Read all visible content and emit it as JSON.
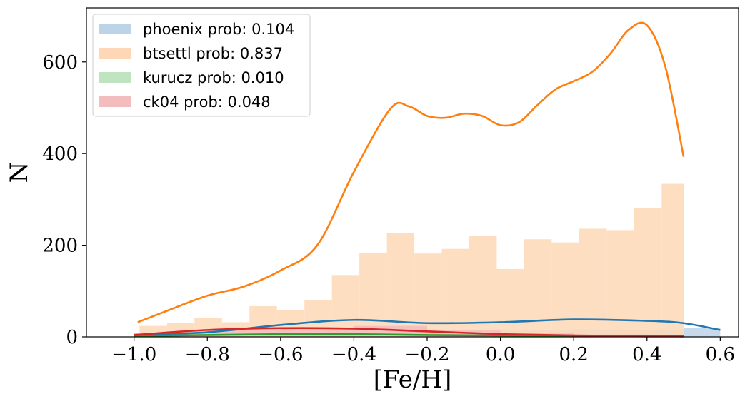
{
  "chart_data": {
    "type": "bar",
    "xlabel": "[Fe/H]",
    "ylabel": "N",
    "xlim": [
      -1.13,
      0.65
    ],
    "ylim": [
      0,
      718
    ],
    "x_ticks": [
      -1.0,
      -0.8,
      -0.6,
      -0.4,
      -0.2,
      0.0,
      0.2,
      0.4,
      0.6
    ],
    "x_tick_labels": [
      "−1.0",
      "−0.8",
      "−0.6",
      "−0.4",
      "−0.2",
      "0.0",
      "0.2",
      "0.4",
      "0.6"
    ],
    "y_ticks": [
      0,
      200,
      400,
      600
    ],
    "y_tick_labels": [
      "0",
      "200",
      "400",
      "600"
    ],
    "legend_position": "top-left",
    "grid": false,
    "series": [
      {
        "name": "phoenix prob: 0.104",
        "color": "#1f77b4",
        "hist_color": "#bcd3e8",
        "bin_edges": [
          -1.0,
          -0.85,
          -0.7,
          -0.55,
          -0.4,
          -0.25,
          -0.1,
          0.05,
          0.2,
          0.35,
          0.5,
          0.6
        ],
        "values": [
          8,
          10,
          12,
          14,
          16,
          15,
          14,
          15,
          16,
          14,
          20
        ],
        "kde_x": [
          -1.0,
          -0.8,
          -0.6,
          -0.4,
          -0.2,
          0.0,
          0.2,
          0.4,
          0.5,
          0.6
        ],
        "kde_y": [
          4,
          10,
          26,
          37,
          30,
          32,
          38,
          35,
          30,
          15
        ]
      },
      {
        "name": "btsettl prob: 0.837",
        "color": "#ff7f0e",
        "hist_color": "#fed8b6",
        "bin_edges": [
          -0.985,
          -0.91,
          -0.835,
          -0.76,
          -0.685,
          -0.61,
          -0.535,
          -0.46,
          -0.385,
          -0.31,
          -0.235,
          -0.16,
          -0.085,
          -0.01,
          0.065,
          0.14,
          0.215,
          0.29,
          0.365,
          0.44,
          0.5
        ],
        "values": [
          24,
          30,
          42,
          32,
          67,
          58,
          81,
          135,
          183,
          227,
          182,
          192,
          220,
          148,
          213,
          206,
          236,
          233,
          281,
          334
        ],
        "kde_x": [
          -0.99,
          -0.9,
          -0.8,
          -0.7,
          -0.6,
          -0.5,
          -0.4,
          -0.3,
          -0.25,
          -0.2,
          -0.15,
          -0.1,
          -0.05,
          0.0,
          0.05,
          0.1,
          0.15,
          0.2,
          0.25,
          0.3,
          0.35,
          0.4,
          0.45,
          0.5
        ],
        "kde_y": [
          32,
          60,
          90,
          110,
          145,
          200,
          360,
          498,
          503,
          482,
          478,
          487,
          482,
          462,
          468,
          505,
          540,
          558,
          578,
          618,
          670,
          680,
          590,
          393
        ]
      },
      {
        "name": "kurucz prob: 0.010",
        "color": "#2ca02c",
        "hist_color": "#c0e3c0",
        "bin_edges": [
          -1.0,
          -0.8,
          -0.6,
          -0.4,
          -0.2,
          0.0,
          0.2,
          0.4,
          0.5
        ],
        "values": [
          3,
          5,
          6,
          6,
          4,
          3,
          2,
          2
        ],
        "kde_x": [
          -1.0,
          -0.8,
          -0.6,
          -0.4,
          -0.2,
          0.0,
          0.2,
          0.4,
          0.5
        ],
        "kde_y": [
          2,
          4,
          6,
          6,
          4,
          3,
          2,
          1,
          1
        ]
      },
      {
        "name": "ck04 prob: 0.048",
        "color": "#d62728",
        "hist_color": "#f3bcbd",
        "bin_edges": [
          -1.0,
          -0.8,
          -0.6,
          -0.4,
          -0.2,
          0.0,
          0.2,
          0.4,
          0.5
        ],
        "values": [
          8,
          14,
          18,
          24,
          14,
          8,
          5,
          3
        ],
        "kde_x": [
          -1.0,
          -0.8,
          -0.6,
          -0.4,
          -0.2,
          0.0,
          0.2,
          0.4,
          0.5
        ],
        "kde_y": [
          4,
          15,
          19,
          18,
          12,
          6,
          3,
          2,
          1
        ]
      }
    ]
  }
}
